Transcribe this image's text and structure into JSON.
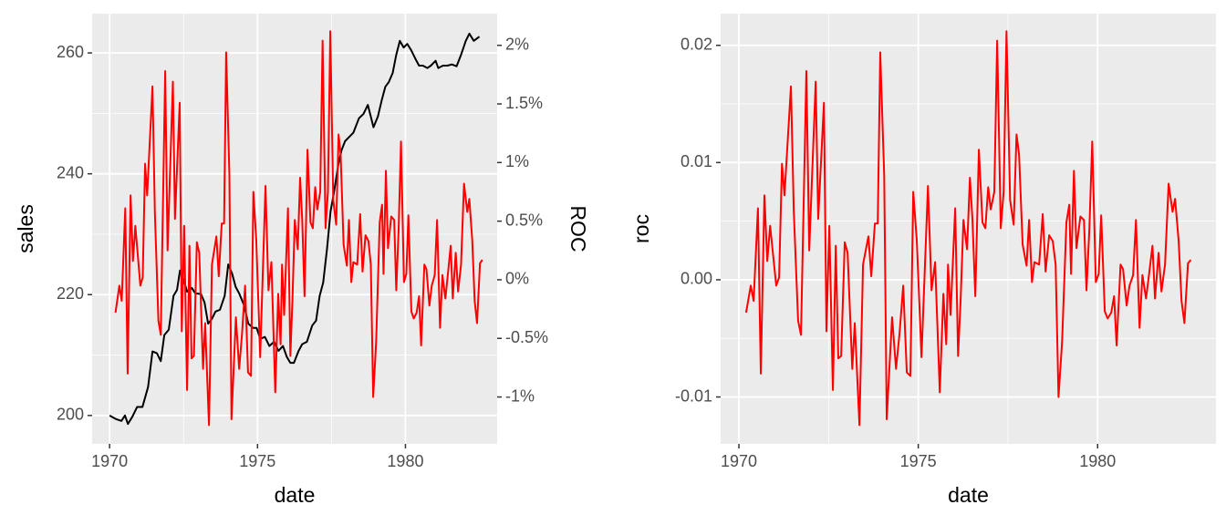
{
  "chart_data": [
    {
      "type": "line",
      "xlabel": "date",
      "ylabel": "sales",
      "y2label": "ROC",
      "xlim": [
        1969.41,
        1983.1
      ],
      "xticks": [
        1970,
        1975,
        1980
      ],
      "ylim": [
        195.3,
        266.5
      ],
      "yticks": [
        200,
        220,
        240,
        260
      ],
      "y2lim": [
        -0.014,
        0.0227
      ],
      "y2ticks": [
        {
          "value": -0.01,
          "label": "-1%"
        },
        {
          "value": -0.005,
          "label": "-0.5%"
        },
        {
          "value": 0,
          "label": "0%"
        },
        {
          "value": 0.005,
          "label": "0.5%"
        },
        {
          "value": 0.01,
          "label": "1%"
        },
        {
          "value": 0.015,
          "label": "1.5%"
        },
        {
          "value": 0.02,
          "label": "2%"
        }
      ],
      "grid": true,
      "series": [
        {
          "color": "black",
          "x": [
            1970.0,
            1970.22,
            1970.4,
            1970.52,
            1970.62,
            1970.77,
            1970.93,
            1971.11,
            1971.3,
            1971.45,
            1971.6,
            1971.73,
            1971.85,
            1972.0,
            1972.16,
            1972.28,
            1972.38,
            1972.5,
            1972.62,
            1972.78,
            1972.9,
            1973.09,
            1973.21,
            1973.33,
            1973.46,
            1973.58,
            1973.73,
            1973.89,
            1974.01,
            1974.14,
            1974.26,
            1974.38,
            1974.54,
            1974.69,
            1974.85,
            1974.97,
            1975.09,
            1975.25,
            1975.4,
            1975.56,
            1975.71,
            1975.86,
            1975.99,
            1976.11,
            1976.23,
            1976.39,
            1976.51,
            1976.67,
            1976.85,
            1976.98,
            1977.1,
            1977.22,
            1977.35,
            1977.47,
            1977.59,
            1977.72,
            1977.84,
            1977.96,
            1978.12,
            1978.24,
            1978.43,
            1978.58,
            1978.73,
            1978.92,
            1979.07,
            1979.2,
            1979.32,
            1979.44,
            1979.57,
            1979.69,
            1979.81,
            1979.94,
            1980.06,
            1980.19,
            1980.34,
            1980.46,
            1980.59,
            1980.74,
            1980.86,
            1981.02,
            1981.11,
            1981.27,
            1981.42,
            1981.57,
            1981.73,
            1981.88,
            1982.04,
            1982.16,
            1982.31,
            1982.5
          ],
          "values": [
            200,
            199.4,
            199.1,
            200,
            198.6,
            199.8,
            201.4,
            201.4,
            204.7,
            210.6,
            210.3,
            209,
            213.3,
            214.2,
            219.8,
            220.8,
            224,
            222.5,
            220.5,
            221.1,
            220.2,
            220.1,
            218.7,
            215.2,
            216,
            217.2,
            217.5,
            219.8,
            225,
            223.5,
            221.3,
            220.2,
            218.3,
            215.2,
            214.5,
            214.5,
            212.7,
            213,
            211.5,
            212.2,
            210.7,
            211.5,
            209.7,
            208.7,
            208.7,
            210.7,
            211.8,
            212.2,
            214.9,
            215.7,
            219.8,
            222,
            227.6,
            233.8,
            237.1,
            241.2,
            243.9,
            245.4,
            246.2,
            246.8,
            249.2,
            249.9,
            251.4,
            247.7,
            249.5,
            252.2,
            254.4,
            255.2,
            256.7,
            259.7,
            262,
            260.9,
            261.5,
            260.5,
            259,
            257.9,
            257.9,
            257.5,
            257.9,
            258.7,
            257.5,
            257.9,
            257.9,
            258.1,
            257.8,
            259.7,
            262,
            263.2,
            262,
            262.7
          ]
        },
        {
          "color": "red",
          "axis": "y2",
          "x": [
            1970.2,
            1970.33,
            1970.41,
            1970.53,
            1970.61,
            1970.71,
            1970.79,
            1970.87,
            1971.04,
            1971.12,
            1971.2,
            1971.27,
            1971.45,
            1971.53,
            1971.65,
            1971.73,
            1971.88,
            1971.96,
            1972.14,
            1972.21,
            1972.37,
            1972.44,
            1972.52,
            1972.62,
            1972.7,
            1972.77,
            1972.85,
            1972.95,
            1973.03,
            1973.16,
            1973.23,
            1973.36,
            1973.46,
            1973.61,
            1973.69,
            1973.79,
            1973.87,
            1973.94,
            1974.05,
            1974.12,
            1974.27,
            1974.38,
            1974.48,
            1974.58,
            1974.68,
            1974.78,
            1974.86,
            1974.96,
            1975.09,
            1975.27,
            1975.37,
            1975.47,
            1975.6,
            1975.7,
            1975.78,
            1975.83,
            1975.9,
            1976.03,
            1976.11,
            1976.18,
            1976.26,
            1976.36,
            1976.44,
            1976.51,
            1976.59,
            1976.69,
            1976.79,
            1976.87,
            1976.95,
            1977.02,
            1977.12,
            1977.2,
            1977.3,
            1977.38,
            1977.46,
            1977.56,
            1977.66,
            1977.74,
            1977.81,
            1977.91,
            1978.02,
            1978.09,
            1978.17,
            1978.24,
            1978.37,
            1978.47,
            1978.55,
            1978.65,
            1978.75,
            1978.83,
            1978.91,
            1979.01,
            1979.13,
            1979.21,
            1979.26,
            1979.34,
            1979.41,
            1979.52,
            1979.62,
            1979.69,
            1979.77,
            1979.85,
            1979.95,
            1980.03,
            1980.1,
            1980.2,
            1980.28,
            1980.38,
            1980.46,
            1980.53,
            1980.64,
            1980.71,
            1980.81,
            1980.89,
            1980.99,
            1981.07,
            1981.17,
            1981.25,
            1981.35,
            1981.42,
            1981.53,
            1981.6,
            1981.7,
            1981.78,
            1981.88,
            1981.98,
            1982.09,
            1982.16,
            1982.26,
            1982.34,
            1982.42,
            1982.52,
            1982.6
          ],
          "values": [
            -0.0028,
            -0.0005,
            -0.0018,
            0.0061,
            -0.008,
            0.0072,
            0.0016,
            0.0046,
            -0.0005,
            0.0002,
            0.0099,
            0.0072,
            0.0165,
            0.0058,
            -0.0035,
            -0.0047,
            0.0178,
            0.0025,
            0.0169,
            0.0052,
            0.0151,
            -0.0044,
            0.0046,
            -0.0094,
            0.0029,
            -0.0067,
            -0.0065,
            0.0032,
            0.0023,
            -0.0076,
            -0.0037,
            -0.0124,
            0.0013,
            0.0037,
            0.0003,
            0.0048,
            0.0048,
            0.0194,
            0.0089,
            -0.0119,
            -0.0032,
            -0.0076,
            -0.0045,
            -0.0005,
            -0.0079,
            -0.0082,
            0.0075,
            0.0033,
            -0.0066,
            0.008,
            -0.0009,
            0.0015,
            -0.0096,
            -0.0012,
            -0.0055,
            0.0013,
            -0.003,
            0.0061,
            -0.0065,
            -0.0018,
            0.0051,
            0.0026,
            0.0087,
            0.0052,
            -0.0014,
            0.0111,
            0.0049,
            0.0044,
            0.0079,
            0.006,
            0.0075,
            0.0204,
            0.0044,
            0.0075,
            0.0212,
            0.0068,
            0.0047,
            0.0124,
            0.0107,
            0.003,
            0.0012,
            0.0051,
            -0.0002,
            0.0015,
            0.0013,
            0.0056,
            0.0007,
            0.0038,
            0.0033,
            0.0013,
            -0.01,
            -0.0053,
            0.0049,
            0.0064,
            0.0005,
            0.0093,
            0.0027,
            0.0054,
            0.0051,
            -0.0009,
            0.0043,
            0.0118,
            -0.0002,
            0.0005,
            0.0055,
            -0.0027,
            -0.0033,
            -0.0028,
            -0.0014,
            -0.0056,
            0.0013,
            0.0009,
            -0.0022,
            -0.0005,
            0.0004,
            0.0051,
            -0.0041,
            0.0004,
            -0.0016,
            0.0001,
            0.0029,
            -0.0016,
            0.0023,
            -0.001,
            0.0013,
            0.0082,
            0.0058,
            0.0069,
            0.0033,
            -0.0018,
            -0.0037,
            0.0014,
            0.0017
          ]
        }
      ]
    },
    {
      "type": "line",
      "xlabel": "date",
      "ylabel": "roc",
      "xlim": [
        1969.49,
        1983.3
      ],
      "xticks": [
        1970,
        1975,
        1980
      ],
      "ylim": [
        -0.014,
        0.0227
      ],
      "yticks": [
        -0.01,
        {
          "value": 0,
          "label": "0.00"
        },
        0.01,
        0.02
      ],
      "grid": true,
      "series": [
        {
          "color": "red",
          "x": [
            1970.2,
            1970.33,
            1970.41,
            1970.53,
            1970.61,
            1970.71,
            1970.79,
            1970.87,
            1971.04,
            1971.12,
            1971.2,
            1971.27,
            1971.45,
            1971.53,
            1971.65,
            1971.73,
            1971.88,
            1971.96,
            1972.14,
            1972.21,
            1972.37,
            1972.44,
            1972.52,
            1972.62,
            1972.7,
            1972.77,
            1972.85,
            1972.95,
            1973.03,
            1973.16,
            1973.23,
            1973.36,
            1973.46,
            1973.61,
            1973.69,
            1973.79,
            1973.87,
            1973.94,
            1974.05,
            1974.12,
            1974.27,
            1974.38,
            1974.48,
            1974.58,
            1974.68,
            1974.78,
            1974.86,
            1974.96,
            1975.09,
            1975.27,
            1975.37,
            1975.47,
            1975.6,
            1975.7,
            1975.78,
            1975.83,
            1975.9,
            1976.03,
            1976.11,
            1976.18,
            1976.26,
            1976.36,
            1976.44,
            1976.51,
            1976.59,
            1976.69,
            1976.79,
            1976.87,
            1976.95,
            1977.02,
            1977.12,
            1977.2,
            1977.3,
            1977.38,
            1977.46,
            1977.56,
            1977.66,
            1977.74,
            1977.81,
            1977.91,
            1978.02,
            1978.09,
            1978.17,
            1978.24,
            1978.37,
            1978.47,
            1978.55,
            1978.65,
            1978.75,
            1978.83,
            1978.91,
            1979.01,
            1979.13,
            1979.21,
            1979.26,
            1979.34,
            1979.41,
            1979.52,
            1979.62,
            1979.69,
            1979.77,
            1979.85,
            1979.95,
            1980.03,
            1980.1,
            1980.2,
            1980.28,
            1980.38,
            1980.46,
            1980.53,
            1980.64,
            1980.71,
            1980.81,
            1980.89,
            1980.99,
            1981.07,
            1981.17,
            1981.25,
            1981.35,
            1981.42,
            1981.53,
            1981.6,
            1981.7,
            1981.78,
            1981.88,
            1981.98,
            1982.09,
            1982.16,
            1982.26,
            1982.34,
            1982.42,
            1982.52,
            1982.6
          ],
          "values": [
            -0.0028,
            -0.0005,
            -0.0018,
            0.0061,
            -0.008,
            0.0072,
            0.0016,
            0.0046,
            -0.0005,
            0.0002,
            0.0099,
            0.0072,
            0.0165,
            0.0058,
            -0.0035,
            -0.0047,
            0.0178,
            0.0025,
            0.0169,
            0.0052,
            0.0151,
            -0.0044,
            0.0046,
            -0.0094,
            0.0029,
            -0.0067,
            -0.0065,
            0.0032,
            0.0023,
            -0.0076,
            -0.0037,
            -0.0124,
            0.0013,
            0.0037,
            0.0003,
            0.0048,
            0.0048,
            0.0194,
            0.0089,
            -0.0119,
            -0.0032,
            -0.0076,
            -0.0045,
            -0.0005,
            -0.0079,
            -0.0082,
            0.0075,
            0.0033,
            -0.0066,
            0.008,
            -0.0009,
            0.0015,
            -0.0096,
            -0.0012,
            -0.0055,
            0.0013,
            -0.003,
            0.0061,
            -0.0065,
            -0.0018,
            0.0051,
            0.0026,
            0.0087,
            0.0052,
            -0.0014,
            0.0111,
            0.0049,
            0.0044,
            0.0079,
            0.006,
            0.0075,
            0.0204,
            0.0044,
            0.0075,
            0.0212,
            0.0068,
            0.0047,
            0.0124,
            0.0107,
            0.003,
            0.0012,
            0.0051,
            -0.0002,
            0.0015,
            0.0013,
            0.0056,
            0.0007,
            0.0038,
            0.0033,
            0.0013,
            -0.01,
            -0.0053,
            0.0049,
            0.0064,
            0.0005,
            0.0093,
            0.0027,
            0.0054,
            0.0051,
            -0.0009,
            0.0043,
            0.0118,
            -0.0002,
            0.0005,
            0.0055,
            -0.0027,
            -0.0033,
            -0.0028,
            -0.0014,
            -0.0056,
            0.0013,
            0.0009,
            -0.0022,
            -0.0005,
            0.0004,
            0.0051,
            -0.0041,
            0.0004,
            -0.0016,
            0.0001,
            0.0029,
            -0.0016,
            0.0023,
            -0.001,
            0.0013,
            0.0082,
            0.0058,
            0.0069,
            0.0033,
            -0.0018,
            -0.0037,
            0.0014,
            0.0017
          ]
        }
      ]
    }
  ]
}
